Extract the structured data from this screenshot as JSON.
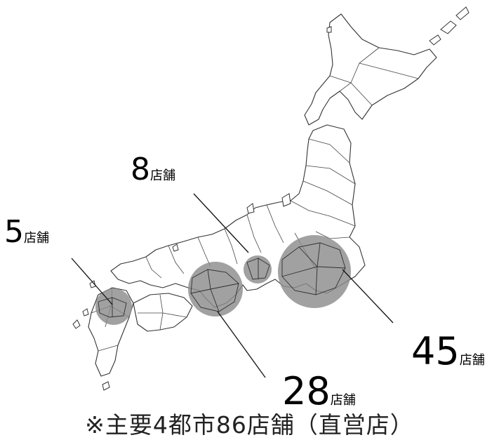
{
  "regions": [
    {
      "id": "kyushu",
      "count": "5",
      "unit": "店舗",
      "stores": 5
    },
    {
      "id": "nagoya",
      "count": "8",
      "unit": "店舗",
      "stores": 8
    },
    {
      "id": "kansai",
      "count": "28",
      "unit": "店舗",
      "stores": 28
    },
    {
      "id": "kanto",
      "count": "45",
      "unit": "店舗",
      "stores": 45
    }
  ],
  "caption": "※主要4都市86店舗（直営店）"
}
